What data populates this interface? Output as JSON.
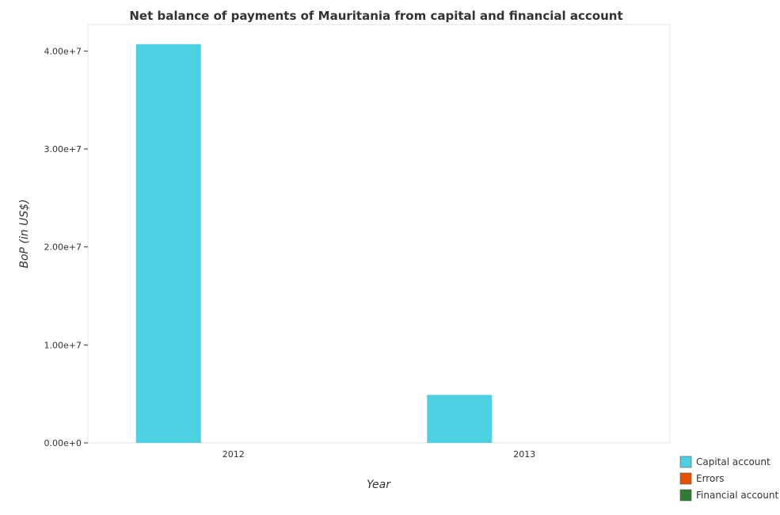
{
  "chart_data": {
    "type": "bar",
    "title": "Net balance of payments of Mauritania from capital and financial account",
    "xlabel": "Year",
    "ylabel": "BoP (in US$)",
    "categories": [
      "2012",
      "2013"
    ],
    "series": [
      {
        "name": "Capital account",
        "color": "#4dd0e1",
        "values": [
          40700000,
          4900000
        ]
      },
      {
        "name": "Errors",
        "color": "#e65100",
        "values": [
          0,
          0
        ]
      },
      {
        "name": "Financial account",
        "color": "#2e7d32",
        "values": [
          0,
          0
        ]
      }
    ],
    "ylim": [
      0,
      42700000
    ],
    "yticks": [
      0,
      10000000,
      20000000,
      30000000,
      40000000
    ],
    "ytick_labels": [
      "0.00e+0",
      "1.00e+7",
      "2.00e+7",
      "3.00e+7",
      "4.00e+7"
    ],
    "grid": false,
    "legend_position": "bottom-right"
  }
}
